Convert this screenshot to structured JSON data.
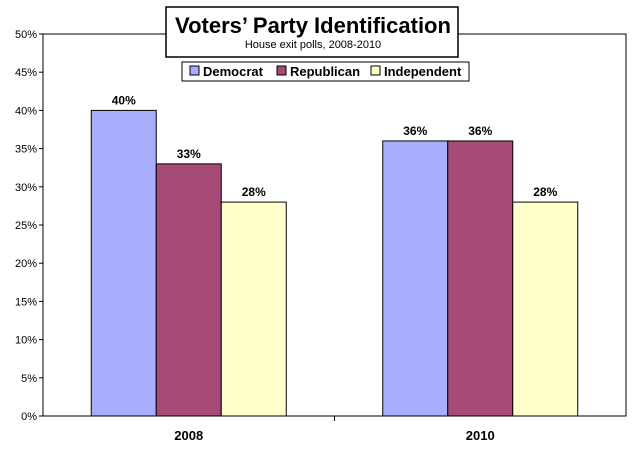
{
  "chart_data": {
    "type": "bar",
    "title": "Voters’ Party Identification",
    "subtitle": "House exit polls, 2008-2010",
    "categories": [
      "2008",
      "2010"
    ],
    "series": [
      {
        "name": "Democrat",
        "color": "#a9aefc",
        "values": [
          40,
          36
        ]
      },
      {
        "name": "Republican",
        "color": "#a64a76",
        "values": [
          33,
          36
        ]
      },
      {
        "name": "Independent",
        "color": "#ffffcc",
        "values": [
          28,
          28
        ]
      }
    ],
    "data_labels": [
      [
        "40%",
        "36%"
      ],
      [
        "33%",
        "36%"
      ],
      [
        "28%",
        "28%"
      ]
    ],
    "ylim": [
      0,
      50
    ],
    "y_ticks": [
      "0%",
      "5%",
      "10%",
      "15%",
      "20%",
      "25%",
      "30%",
      "35%",
      "40%",
      "45%",
      "50%"
    ],
    "grid": false,
    "legend_position": "top"
  }
}
